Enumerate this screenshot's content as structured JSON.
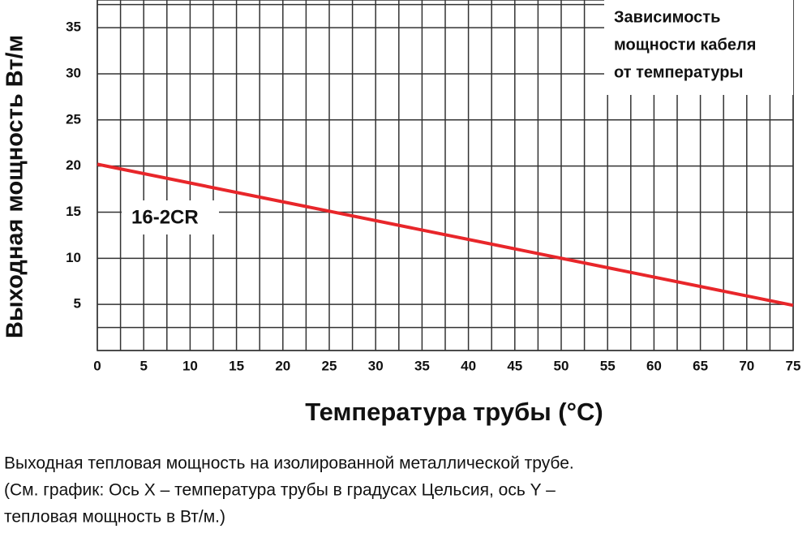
{
  "chart_data": {
    "type": "line",
    "title": [
      "Зависимость",
      "мощности кабеля",
      "от температуры"
    ],
    "x_label": "Температура трубы (°C)",
    "y_label": "Выходная мощность Вт/м",
    "x": [
      0,
      75
    ],
    "series": [
      {
        "name": "16-2CR",
        "color": "#e8262a",
        "values": [
          20.2,
          4.9
        ]
      }
    ],
    "xlim": [
      0,
      75
    ],
    "ylim": [
      0,
      38
    ],
    "xticks": [
      0,
      5,
      10,
      15,
      20,
      25,
      30,
      35,
      40,
      45,
      50,
      55,
      60,
      65,
      70,
      75
    ],
    "yticks": [
      5,
      10,
      15,
      20,
      25,
      30,
      35
    ],
    "grid": true
  },
  "caption": [
    "Выходная тепловая мощность на изолированной металлической трубе.",
    "(См. график: Ось X – температура трубы в градусах Цельсия, ось Y –",
    "тепловая мощность в Вт/м.)"
  ]
}
